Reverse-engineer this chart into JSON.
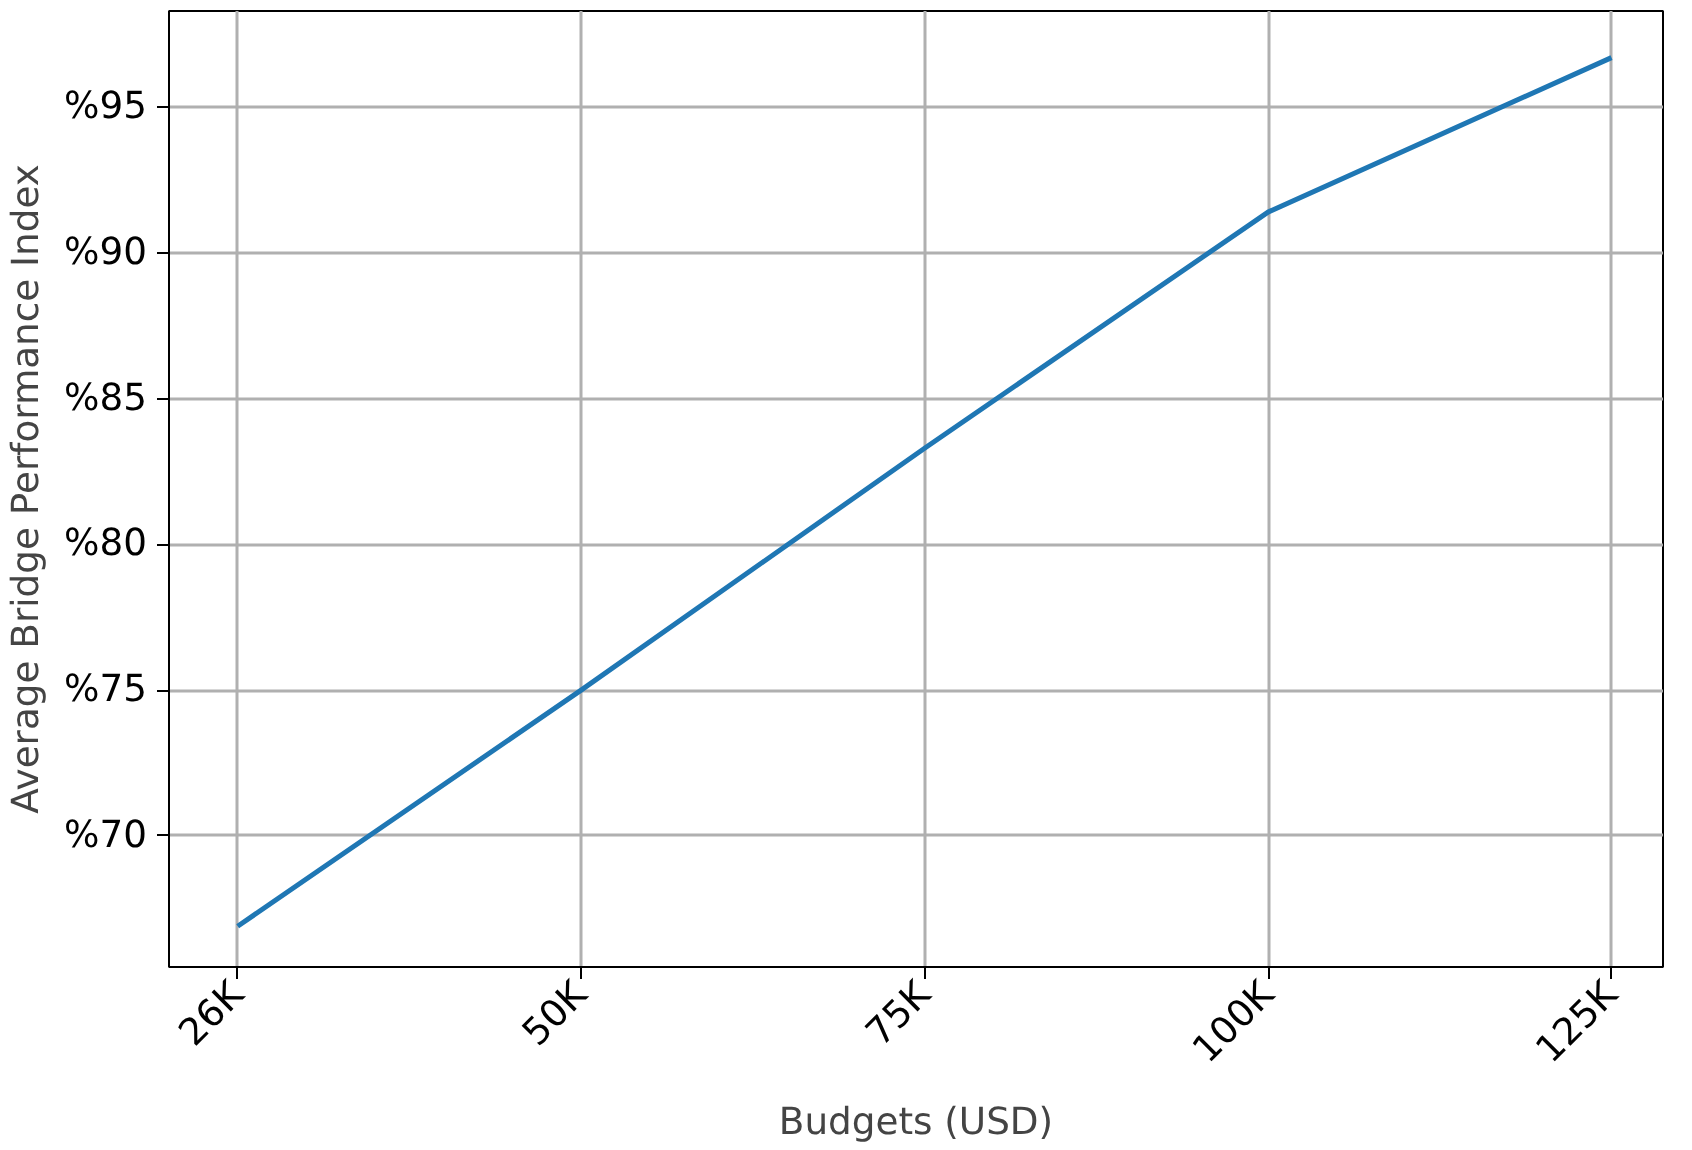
{
  "chart_data": {
    "type": "line",
    "xlabel": "Budgets (USD)",
    "ylabel": "Average Bridge Performance Index",
    "categories": [
      "26K",
      "50K",
      "75K",
      "100K",
      "125K"
    ],
    "series": [
      {
        "color": "#1f77b4",
        "values": [
          66.9,
          75.0,
          83.3,
          91.4,
          96.7
        ]
      }
    ],
    "ylim": [
      65.5,
      98.3
    ],
    "yticks": [
      {
        "value": 70,
        "label": "%70"
      },
      {
        "value": 75,
        "label": "%75"
      },
      {
        "value": 80,
        "label": "%80"
      },
      {
        "value": 85,
        "label": "%85"
      },
      {
        "value": 90,
        "label": "%90"
      },
      {
        "value": 95,
        "label": "%95"
      }
    ],
    "grid": true,
    "line_style": "solid"
  }
}
